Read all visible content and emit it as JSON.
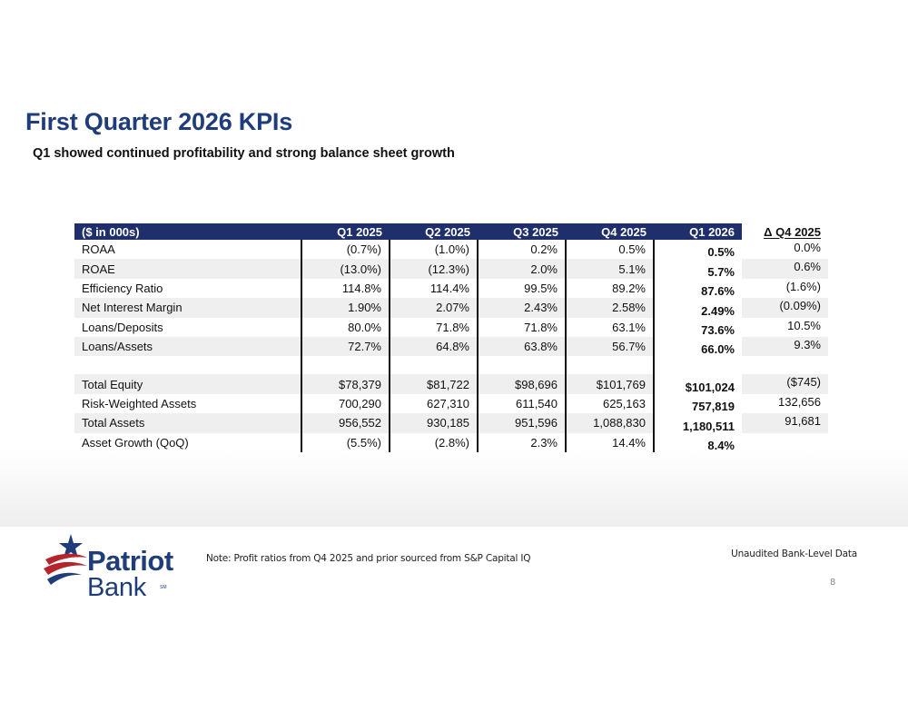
{
  "slide": {
    "title": "First Quarter 2026 KPIs",
    "subtitle": "Q1 showed continued profitability and strong balance sheet growth",
    "page_number": "8"
  },
  "table": {
    "headers": [
      "($ in 000s)",
      "Q1 2025",
      "Q2 2025",
      "Q3 2025",
      "Q4 2025",
      "Q1 2026",
      "Δ Q4 2025"
    ],
    "rows": [
      {
        "label": "ROAA",
        "values": [
          "(0.7%)",
          "(1.0%)",
          "0.2%",
          "0.5%",
          "0.5%",
          "0.0%"
        ]
      },
      {
        "label": "ROAE",
        "values": [
          "(13.0%)",
          "(12.3%)",
          "2.0%",
          "5.1%",
          "5.7%",
          "0.6%"
        ]
      },
      {
        "label": "Efficiency Ratio",
        "values": [
          "114.8%",
          "114.4%",
          "99.5%",
          "89.2%",
          "87.6%",
          "(1.6%)"
        ]
      },
      {
        "label": "Net Interest Margin",
        "values": [
          "1.90%",
          "2.07%",
          "2.43%",
          "2.58%",
          "2.49%",
          "(0.09%)"
        ]
      },
      {
        "label": "Loans/Deposits",
        "values": [
          "80.0%",
          "71.8%",
          "71.8%",
          "63.1%",
          "73.6%",
          "10.5%"
        ]
      },
      {
        "label": "Loans/Assets",
        "values": [
          "72.7%",
          "64.8%",
          "63.8%",
          "56.7%",
          "66.0%",
          "9.3%"
        ]
      },
      {
        "label": "Total Equity",
        "values": [
          "$78,379",
          "$81,722",
          "$98,696",
          "$101,769",
          "$101,024",
          "($745)"
        ]
      },
      {
        "label": "Risk-Weighted Assets",
        "values": [
          "700,290",
          "627,310",
          "611,540",
          "625,163",
          "757,819",
          "132,656"
        ]
      },
      {
        "label": "Total Assets",
        "values": [
          "956,552",
          "930,185",
          "951,596",
          "1,088,830",
          "1,180,511",
          "91,681"
        ]
      },
      {
        "label": "Asset Growth (QoQ)",
        "values": [
          "(5.5%)",
          "(2.8%)",
          "2.3%",
          "14.4%",
          "8.4%",
          ""
        ]
      }
    ]
  },
  "footer": {
    "logo_line1": "Patriot",
    "logo_line2": "Bank",
    "logo_mark": "SM",
    "note": "Note: Profit ratios from Q4 2025 and prior sourced from S&P Capital IQ",
    "unaudited": "Unaudited Bank-Level Data"
  },
  "colors": {
    "title": "#1f3d7a",
    "header_bg": "#1f2f6b",
    "row_shade": "#efefef",
    "logo_red": "#b5242c",
    "logo_blue": "#1f3d7a"
  },
  "icons": {
    "logo": "star-swoosh-logo-icon"
  }
}
